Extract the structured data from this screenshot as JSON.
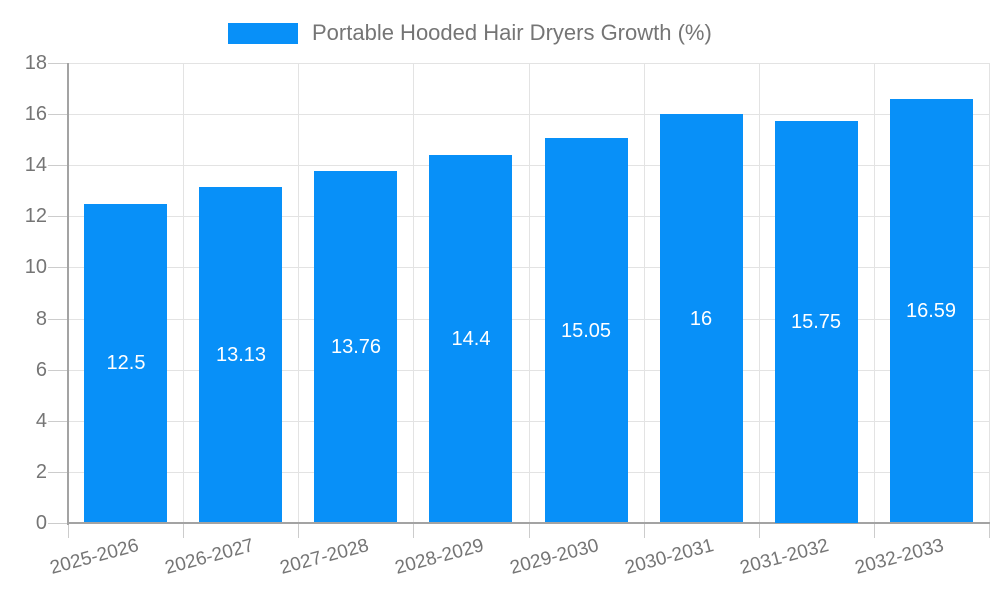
{
  "legend": {
    "label": "Portable Hooded Hair Dryers Growth (%)"
  },
  "colors": {
    "bar": "#0890f8",
    "grid": "#e3e3e3",
    "axis": "#a3a3a3",
    "tick": "#cccccc",
    "text": "#757575",
    "bar_label": "#ffffff",
    "background": "#ffffff"
  },
  "chart_data": {
    "type": "bar",
    "title": "Portable Hooded Hair Dryers Growth (%)",
    "categories": [
      "2025-2026",
      "2026-2027",
      "2027-2028",
      "2028-2029",
      "2029-2030",
      "2030-2031",
      "2031-2032",
      "2032-2033"
    ],
    "values": [
      12.5,
      13.13,
      13.76,
      14.4,
      15.05,
      16,
      15.75,
      16.59
    ],
    "value_labels": [
      "12.5",
      "13.13",
      "13.76",
      "14.4",
      "15.05",
      "16",
      "15.75",
      "16.59"
    ],
    "xlabel": "",
    "ylabel": "",
    "ylim": [
      0,
      18
    ],
    "ytick_step": 2,
    "ytick_labels": [
      "0",
      "2",
      "4",
      "6",
      "8",
      "10",
      "12",
      "14",
      "16",
      "18"
    ],
    "grid": true,
    "legend_position": "top"
  }
}
